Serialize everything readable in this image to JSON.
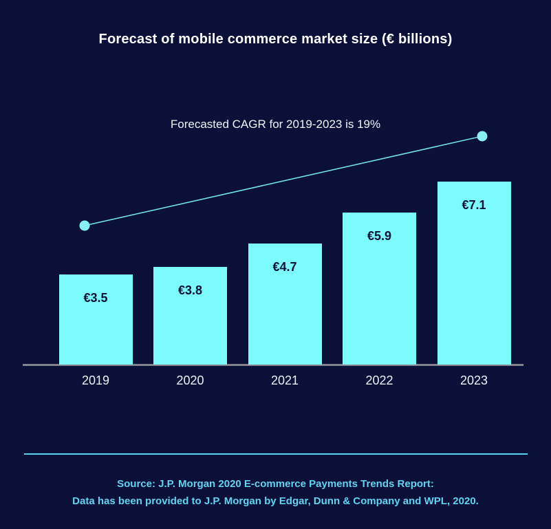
{
  "chart_data": {
    "type": "bar",
    "title": "Forecast of mobile commerce market size (€ billions)",
    "annotation": "Forecasted CAGR for 2019-2023 is 19%",
    "categories": [
      "2019",
      "2020",
      "2021",
      "2022",
      "2023"
    ],
    "values": [
      3.5,
      3.8,
      4.7,
      5.9,
      7.1
    ],
    "value_labels": [
      "€3.5",
      "€3.8",
      "€4.7",
      "€5.9",
      "€7.1"
    ],
    "ylabel": "",
    "xlabel": "",
    "ylim": [
      0,
      7.5
    ],
    "grid": "off",
    "legend": "none",
    "trendline": {
      "description": "straight CAGR trend line with end dots rising from 2019 to 2023",
      "start_category": "2019",
      "end_category": "2023",
      "cagr_percent": 19
    },
    "colors": {
      "background": "#0a1038",
      "bar_fill": "#7cfbfc",
      "bar_value_label": "#0a1038",
      "axis_line": "#82838e",
      "trend_line": "#72e0ec",
      "trend_dot": "#86f0f2",
      "year_label": "#eef0f5",
      "title_text": "#ffffff",
      "footer_text": "#62d3ef",
      "divider": "#5bd1ea"
    }
  },
  "footer": {
    "line1": "Source: J.P. Morgan 2020 E-commerce Payments Trends Report:",
    "line2": "Data has been provided to J.P. Morgan by Edgar, Dunn & Company and WPL, 2020."
  }
}
